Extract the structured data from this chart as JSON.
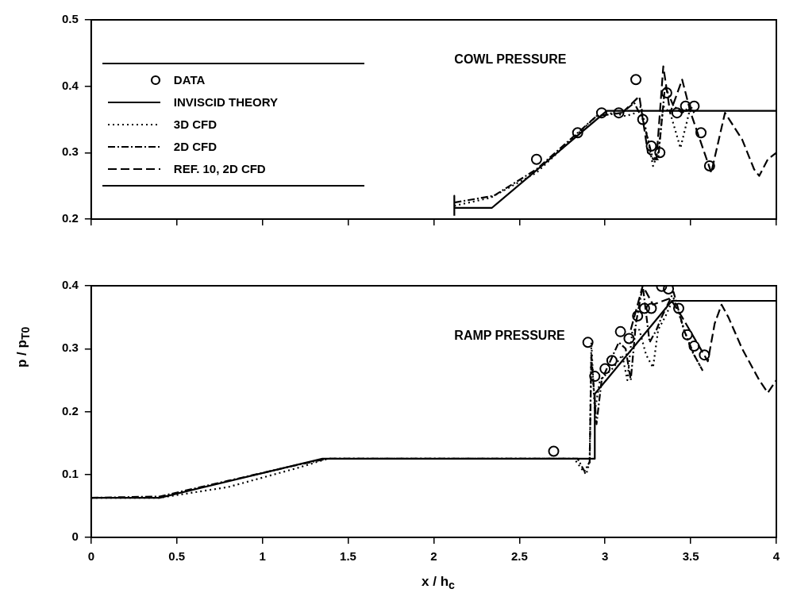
{
  "chart_data": [
    {
      "type": "line",
      "xlim": [
        0,
        4
      ],
      "xticks": [
        0,
        0.5,
        1,
        1.5,
        2,
        2.5,
        3,
        3.5,
        4
      ],
      "ylim": [
        0.2,
        0.5
      ],
      "yticks": [
        0.2,
        0.3,
        0.4,
        0.5
      ],
      "tick_labels": "y",
      "legend": "left",
      "annotations": [
        "COWL PRESSURE"
      ],
      "series": [
        {
          "name": "DATA",
          "type": "scatter",
          "marker": "circle",
          "color": "#000000",
          "x": [
            2.6,
            2.84,
            2.98,
            3.08,
            3.18,
            3.22,
            3.27,
            3.32,
            3.36,
            3.42,
            3.47,
            3.52,
            3.56,
            3.61
          ],
          "values": [
            0.29,
            0.33,
            0.36,
            0.36,
            0.41,
            0.35,
            0.31,
            0.3,
            0.39,
            0.36,
            0.37,
            0.37,
            0.33,
            0.28
          ]
        },
        {
          "name": "INVISCID THEORY",
          "type": "line",
          "line_style": "solid",
          "color": "#000000",
          "x": [
            2.12,
            2.12,
            2.12,
            2.34,
            3.01,
            4
          ],
          "values": [
            0.205,
            0.235,
            0.217,
            0.217,
            0.363,
            0.363
          ]
        },
        {
          "name": "3D CFD",
          "type": "line",
          "line_style": "dotted",
          "color": "#000000",
          "x": [
            2.12,
            2.33,
            2.6,
            2.95,
            3.05,
            3.12,
            3.18,
            3.21,
            3.25,
            3.28,
            3.31,
            3.34,
            3.38,
            3.44,
            3.5,
            3.52
          ],
          "values": [
            0.22,
            0.232,
            0.27,
            0.355,
            0.36,
            0.355,
            0.36,
            0.37,
            0.32,
            0.28,
            0.3,
            0.37,
            0.36,
            0.307,
            0.37,
            0.36
          ]
        },
        {
          "name": "2D CFD",
          "type": "line",
          "line_style": "dashdot",
          "color": "#000000",
          "x": [
            2.12,
            2.35,
            2.6,
            2.95,
            3.1,
            3.17,
            3.22,
            3.28,
            3.31,
            3.35,
            3.4,
            3.45,
            3.5
          ],
          "values": [
            0.225,
            0.235,
            0.275,
            0.355,
            0.36,
            0.375,
            0.35,
            0.29,
            0.29,
            0.4,
            0.37,
            0.36,
            0.37
          ]
        },
        {
          "name": "REF. 10, 2D CFD",
          "type": "line",
          "line_style": "dashed",
          "color": "#000000",
          "x": [
            3.1,
            3.2,
            3.25,
            3.3,
            3.34,
            3.38,
            3.45,
            3.5,
            3.58,
            3.62,
            3.7,
            3.8,
            3.87,
            3.9,
            3.95,
            4
          ],
          "values": [
            0.36,
            0.385,
            0.3,
            0.29,
            0.43,
            0.36,
            0.41,
            0.36,
            0.3,
            0.27,
            0.36,
            0.32,
            0.275,
            0.265,
            0.29,
            0.3
          ]
        }
      ]
    },
    {
      "type": "line",
      "xlabel": "x / h$_{c}$",
      "ylabel": "p / p$_{T0}$",
      "xlim": [
        0,
        4
      ],
      "xticks": [
        0,
        0.5,
        1,
        1.5,
        2,
        2.5,
        3,
        3.5,
        4
      ],
      "ylim": [
        0,
        0.4
      ],
      "yticks": [
        0,
        0.1,
        0.2,
        0.3,
        0.4
      ],
      "annotations": [
        "RAMP PRESSURE"
      ],
      "series": [
        {
          "type": "scatter",
          "marker": "circle",
          "color": "#000000",
          "x": [
            2.7,
            2.9,
            2.94,
            3.0,
            3.04,
            3.09,
            3.14,
            3.19,
            3.23,
            3.27,
            3.33,
            3.37,
            3.43,
            3.48,
            3.52,
            3.58
          ],
          "values": [
            0.137,
            0.31,
            0.256,
            0.268,
            0.281,
            0.327,
            0.316,
            0.352,
            0.364,
            0.364,
            0.399,
            0.395,
            0.364,
            0.322,
            0.304,
            0.29
          ]
        },
        {
          "type": "line",
          "line_style": "solid",
          "color": "#000000",
          "x": [
            0,
            0.4,
            1.35,
            2.94,
            2.94,
            3.39,
            4
          ],
          "values": [
            0.063,
            0.063,
            0.125,
            0.125,
            0.228,
            0.376,
            0.376
          ]
        },
        {
          "type": "line",
          "line_style": "dotted",
          "color": "#000000",
          "x": [
            0,
            0.4,
            0.8,
            1.2,
            1.38,
            2.82,
            2.86,
            2.89,
            2.91,
            2.92,
            2.94,
            2.97,
            3.05,
            3.1,
            3.13,
            3.16,
            3.2,
            3.24,
            3.28,
            3.31,
            3.35,
            3.4,
            3.45,
            3.5,
            3.56
          ],
          "values": [
            0.063,
            0.063,
            0.08,
            0.11,
            0.125,
            0.125,
            0.11,
            0.1,
            0.12,
            0.31,
            0.2,
            0.25,
            0.27,
            0.29,
            0.25,
            0.33,
            0.33,
            0.29,
            0.27,
            0.33,
            0.35,
            0.38,
            0.34,
            0.3,
            0.27
          ]
        },
        {
          "type": "line",
          "line_style": "dashdot",
          "color": "#000000",
          "x": [
            0,
            0.4,
            0.8,
            1.2,
            1.38,
            2.84,
            2.88,
            2.91,
            2.92,
            2.95,
            2.98,
            3.08,
            3.12,
            3.15,
            3.18,
            3.22,
            3.26,
            3.3,
            3.33,
            3.4,
            3.46,
            3.52,
            3.57
          ],
          "values": [
            0.063,
            0.065,
            0.09,
            0.115,
            0.125,
            0.125,
            0.105,
            0.12,
            0.29,
            0.18,
            0.25,
            0.31,
            0.3,
            0.25,
            0.34,
            0.4,
            0.31,
            0.33,
            0.35,
            0.39,
            0.33,
            0.29,
            0.265
          ]
        },
        {
          "type": "line",
          "line_style": "dashed",
          "color": "#000000",
          "x": [
            3.15,
            3.22,
            3.28,
            3.38,
            3.45,
            3.6,
            3.64,
            3.68,
            3.72,
            3.8,
            3.9,
            3.95,
            4
          ],
          "values": [
            0.33,
            0.4,
            0.37,
            0.38,
            0.35,
            0.28,
            0.34,
            0.37,
            0.35,
            0.3,
            0.25,
            0.23,
            0.25
          ]
        }
      ]
    }
  ]
}
